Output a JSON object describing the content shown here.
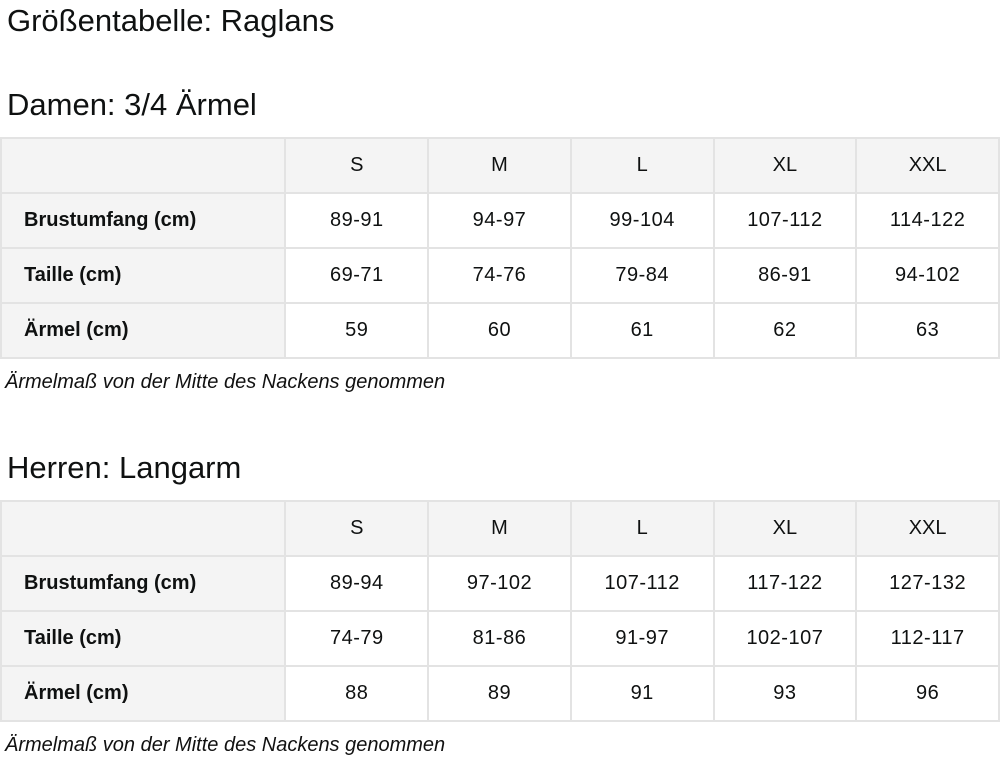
{
  "page": {
    "title": "Größentabelle: Raglans"
  },
  "colors": {
    "header_bg": "#f4f4f4",
    "table_border": "#e3e3e3",
    "text": "#0f1111",
    "cell_bg": "#ffffff"
  },
  "sections": [
    {
      "heading": "Damen: 3/4 Ärmel",
      "columns": [
        "S",
        "M",
        "L",
        "XL",
        "XXL"
      ],
      "rows": [
        {
          "label": "Brustumfang (cm)",
          "values": [
            "89-91",
            "94-97",
            "99-104",
            "107-112",
            "114-122"
          ]
        },
        {
          "label": "Taille (cm)",
          "values": [
            "69-71",
            "74-76",
            "79-84",
            "86-91",
            "94-102"
          ]
        },
        {
          "label": "Ärmel (cm)",
          "values": [
            "59",
            "60",
            "61",
            "62",
            "63"
          ]
        }
      ],
      "footnote": "Ärmelmaß von der Mitte des Nackens genommen"
    },
    {
      "heading": "Herren: Langarm",
      "columns": [
        "S",
        "M",
        "L",
        "XL",
        "XXL"
      ],
      "rows": [
        {
          "label": "Brustumfang (cm)",
          "values": [
            "89-94",
            "97-102",
            "107-112",
            "117-122",
            "127-132"
          ]
        },
        {
          "label": "Taille (cm)",
          "values": [
            "74-79",
            "81-86",
            "91-97",
            "102-107",
            "112-117"
          ]
        },
        {
          "label": "Ärmel (cm)",
          "values": [
            "88",
            "89",
            "91",
            "93",
            "96"
          ]
        }
      ],
      "footnote": "Ärmelmaß von der Mitte des Nackens genommen"
    }
  ]
}
